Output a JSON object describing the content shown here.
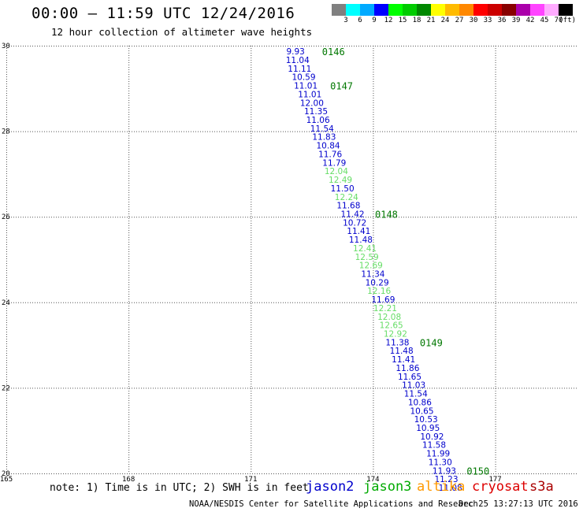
{
  "header": {
    "title": "00:00 — 11:59 UTC 12/24/2016",
    "subtitle": "12 hour collection of altimeter wave heights"
  },
  "colorbar": {
    "colors": [
      "#808080",
      "#00ffff",
      "#00aaff",
      "#0000ff",
      "#00ff00",
      "#00cc00",
      "#008800",
      "#ffff00",
      "#ffbb00",
      "#ff8800",
      "#ff0000",
      "#cc0000",
      "#880000",
      "#aa00aa",
      "#ff44ff",
      "#ffaaff",
      "#000000"
    ],
    "labels": [
      "3",
      "6",
      "9",
      "12",
      "15",
      "18",
      "21",
      "24",
      "27",
      "30",
      "33",
      "36",
      "39",
      "42",
      "45",
      "70"
    ],
    "unit": "(ft)"
  },
  "note": "note: 1) Time is in UTC; 2) SWH is in feet",
  "satellites": [
    {
      "name": "jason2",
      "color": "#0000cc"
    },
    {
      "name": "jason3",
      "color": "#00aa00"
    },
    {
      "name": "altika",
      "color": "#ff9900"
    },
    {
      "name": "cryosat",
      "color": "#dd0000"
    },
    {
      "name": "s3a",
      "color": "#aa0000"
    }
  ],
  "footer": {
    "left": "NOAA/NESDIS Center for Satellite Applications and Research",
    "right": "Dec 25 13:27:13 UTC 2016"
  },
  "chart_data": {
    "type": "scatter",
    "title": "00:00 — 11:59 UTC 12/24/2016",
    "subtitle": "12 hour collection of altimeter wave heights",
    "xlim": [
      165,
      179
    ],
    "ylim": [
      20,
      30
    ],
    "x_ticks": [
      "165",
      "168",
      "171",
      "174",
      "177"
    ],
    "y_ticks": [
      "20",
      "22",
      "24",
      "26",
      "28",
      "30"
    ],
    "grid": true,
    "series": [
      {
        "name": "jason2",
        "points": [
          {
            "x": 172.1,
            "y": 29.85,
            "v": "9.93",
            "c": "#0000cc"
          },
          {
            "x": 172.15,
            "y": 29.65,
            "v": "11.04",
            "c": "#0000cc"
          },
          {
            "x": 172.2,
            "y": 29.45,
            "v": "11.11",
            "c": "#0000cc"
          },
          {
            "x": 172.3,
            "y": 29.25,
            "v": "10.59",
            "c": "#0000cc"
          },
          {
            "x": 172.35,
            "y": 29.05,
            "v": "11.01",
            "c": "#0000cc"
          },
          {
            "x": 172.45,
            "y": 28.85,
            "v": "11.01",
            "c": "#0000cc"
          },
          {
            "x": 172.5,
            "y": 28.65,
            "v": "12.00",
            "c": "#0000cc"
          },
          {
            "x": 172.6,
            "y": 28.45,
            "v": "11.35",
            "c": "#0000cc"
          },
          {
            "x": 172.65,
            "y": 28.25,
            "v": "11.06",
            "c": "#0000cc"
          },
          {
            "x": 172.75,
            "y": 28.05,
            "v": "11.54",
            "c": "#0000cc"
          },
          {
            "x": 172.8,
            "y": 27.85,
            "v": "11.83",
            "c": "#0000cc"
          },
          {
            "x": 172.9,
            "y": 27.65,
            "v": "10.84",
            "c": "#0000cc"
          },
          {
            "x": 172.95,
            "y": 27.45,
            "v": "11.76",
            "c": "#0000cc"
          },
          {
            "x": 173.05,
            "y": 27.25,
            "v": "11.79",
            "c": "#0000cc"
          },
          {
            "x": 173.1,
            "y": 27.05,
            "v": "12.04",
            "c": "#66dd66"
          },
          {
            "x": 173.2,
            "y": 26.85,
            "v": "12.49",
            "c": "#66dd66"
          },
          {
            "x": 173.25,
            "y": 26.65,
            "v": "11.50",
            "c": "#0000cc"
          },
          {
            "x": 173.35,
            "y": 26.45,
            "v": "12.24",
            "c": "#66dd66"
          },
          {
            "x": 173.4,
            "y": 26.25,
            "v": "11.68",
            "c": "#0000cc"
          },
          {
            "x": 173.5,
            "y": 26.05,
            "v": "11.42",
            "c": "#0000cc"
          },
          {
            "x": 173.55,
            "y": 25.85,
            "v": "10.72",
            "c": "#0000cc"
          },
          {
            "x": 173.65,
            "y": 25.65,
            "v": "11.41",
            "c": "#0000cc"
          },
          {
            "x": 173.7,
            "y": 25.45,
            "v": "11.48",
            "c": "#0000cc"
          },
          {
            "x": 173.8,
            "y": 25.25,
            "v": "12.41",
            "c": "#66dd66"
          },
          {
            "x": 173.85,
            "y": 25.05,
            "v": "12.59",
            "c": "#66dd66"
          },
          {
            "x": 173.95,
            "y": 24.85,
            "v": "12.69",
            "c": "#66dd66"
          },
          {
            "x": 174.0,
            "y": 24.65,
            "v": "11.34",
            "c": "#0000cc"
          },
          {
            "x": 174.1,
            "y": 24.45,
            "v": "10.29",
            "c": "#0000cc"
          },
          {
            "x": 174.15,
            "y": 24.25,
            "v": "12.16",
            "c": "#66dd66"
          },
          {
            "x": 174.25,
            "y": 24.05,
            "v": "11.69",
            "c": "#0000cc"
          },
          {
            "x": 174.3,
            "y": 23.85,
            "v": "12.21",
            "c": "#66dd66"
          },
          {
            "x": 174.4,
            "y": 23.65,
            "v": "12.08",
            "c": "#66dd66"
          },
          {
            "x": 174.45,
            "y": 23.45,
            "v": "12.65",
            "c": "#66dd66"
          },
          {
            "x": 174.55,
            "y": 23.25,
            "v": "12.92",
            "c": "#66dd66"
          },
          {
            "x": 174.6,
            "y": 23.05,
            "v": "11.38",
            "c": "#0000cc"
          },
          {
            "x": 174.7,
            "y": 22.85,
            "v": "11.48",
            "c": "#0000cc"
          },
          {
            "x": 174.75,
            "y": 22.65,
            "v": "11.41",
            "c": "#0000cc"
          },
          {
            "x": 174.85,
            "y": 22.45,
            "v": "11.86",
            "c": "#0000cc"
          },
          {
            "x": 174.9,
            "y": 22.25,
            "v": "11.65",
            "c": "#0000cc"
          },
          {
            "x": 175.0,
            "y": 22.05,
            "v": "11.03",
            "c": "#0000cc"
          },
          {
            "x": 175.05,
            "y": 21.85,
            "v": "11.54",
            "c": "#0000cc"
          },
          {
            "x": 175.15,
            "y": 21.65,
            "v": "10.86",
            "c": "#0000cc"
          },
          {
            "x": 175.2,
            "y": 21.45,
            "v": "10.65",
            "c": "#0000cc"
          },
          {
            "x": 175.3,
            "y": 21.25,
            "v": "10.53",
            "c": "#0000cc"
          },
          {
            "x": 175.35,
            "y": 21.05,
            "v": "10.95",
            "c": "#0000cc"
          },
          {
            "x": 175.45,
            "y": 20.85,
            "v": "10.92",
            "c": "#0000cc"
          },
          {
            "x": 175.5,
            "y": 20.65,
            "v": "11.58",
            "c": "#0000cc"
          },
          {
            "x": 175.6,
            "y": 20.45,
            "v": "11.99",
            "c": "#0000cc"
          },
          {
            "x": 175.65,
            "y": 20.25,
            "v": "11.30",
            "c": "#0000cc"
          },
          {
            "x": 175.75,
            "y": 20.05,
            "v": "11.93",
            "c": "#0000cc"
          },
          {
            "x": 175.8,
            "y": 19.85,
            "v": "11.23",
            "c": "#0000cc"
          },
          {
            "x": 175.9,
            "y": 19.65,
            "v": "11.08",
            "c": "#0000cc"
          }
        ]
      }
    ],
    "annotations": [
      {
        "text": "0146",
        "x": 172.75,
        "y": 29.85
      },
      {
        "text": "0147",
        "x": 172.95,
        "y": 29.05
      },
      {
        "text": "0148",
        "x": 174.05,
        "y": 26.05
      },
      {
        "text": "0149",
        "x": 175.15,
        "y": 23.05
      },
      {
        "text": "0150",
        "x": 176.3,
        "y": 20.05
      }
    ],
    "annotation_color": "#007700"
  }
}
